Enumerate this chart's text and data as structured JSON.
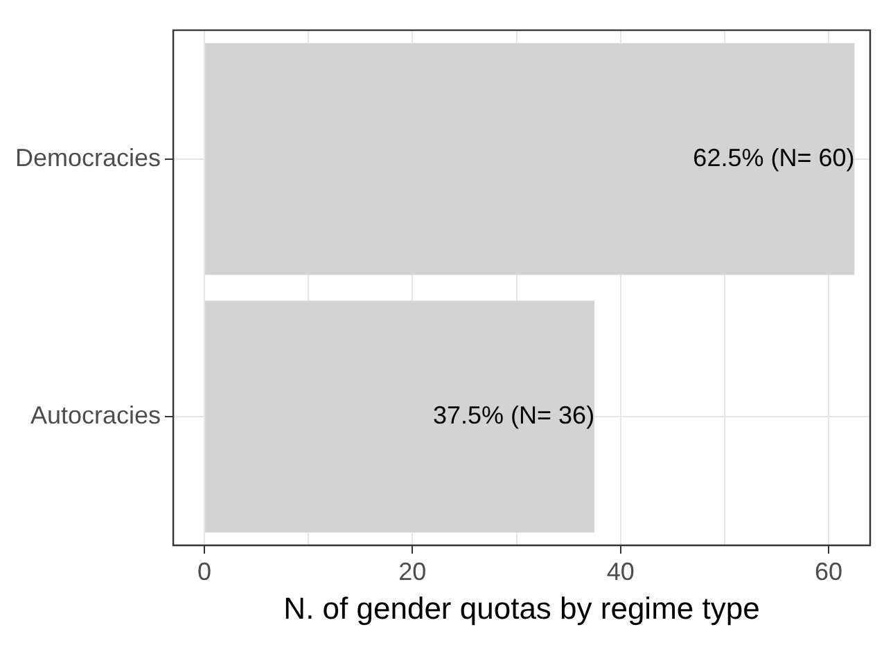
{
  "chart_data": {
    "type": "bar",
    "orientation": "horizontal",
    "xlabel": "N. of gender quotas by regime type",
    "categories": [
      "Democracies",
      "Autocracies"
    ],
    "values": [
      62.5,
      37.5
    ],
    "color": "#d3d3d3",
    "value_labels": [
      "62.5% (N= 60)",
      "37.5% (N= 36)"
    ],
    "xlim": [
      -3,
      64
    ],
    "xticks": [
      0,
      {
        "value": 10,
        "label": null
      },
      20,
      {
        "value": 30,
        "label": null
      },
      40,
      {
        "value": 50,
        "label": null
      },
      60
    ],
    "grid": true,
    "legend": false
  }
}
